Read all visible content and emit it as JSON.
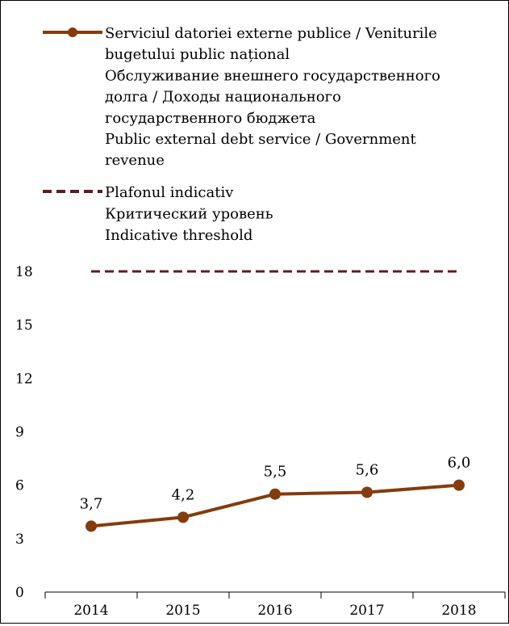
{
  "chart_data": {
    "type": "line",
    "categories": [
      "2014",
      "2015",
      "2016",
      "2017",
      "2018"
    ],
    "series": [
      {
        "name": "Serviciul datoriei externe publice / Veniturile bugetului public național\nОбслуживание внешнего государственного долга / Доходы национального государственного бюджета\nPublic external debt service / Government revenue",
        "legend_lines": [
          "Serviciul datoriei externe publice / Veniturile",
          "bugetului public național",
          "Обслуживание внешнего государственного",
          "долга / Доходы национального",
          "государственного бюджета",
          "Public external debt service / Government",
          "revenue"
        ],
        "values": [
          3.7,
          4.2,
          5.5,
          5.6,
          6.0
        ],
        "data_labels": [
          "3,7",
          "4,2",
          "5,5",
          "5,6",
          "6,0"
        ],
        "color": "#843C0C",
        "style": "solid-markers"
      },
      {
        "name": "Plafonul indicativ\nКритический уровень\nIndicative threshold",
        "legend_lines": [
          "Plafonul indicativ",
          "Критический уровень",
          "Indicative threshold"
        ],
        "values": [
          18,
          18,
          18,
          18,
          18
        ],
        "color": "#5B1F1F",
        "style": "dashed"
      }
    ],
    "y_ticks": [
      "0",
      "3",
      "6",
      "9",
      "12",
      "15",
      "18"
    ],
    "ylim": [
      0,
      18
    ],
    "grid": false,
    "legend_position": "top"
  }
}
